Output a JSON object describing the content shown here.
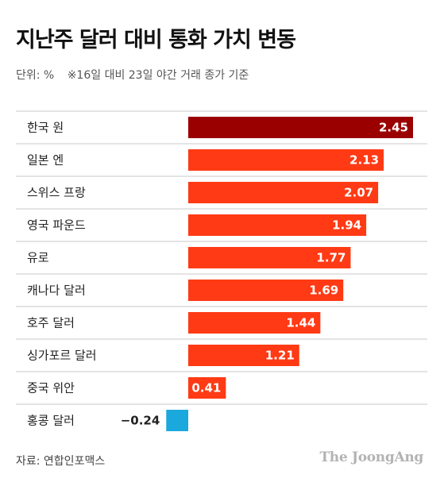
{
  "title": "지난주 달러 대비 통화 가치 변동",
  "unit": "단위: %",
  "note": "※16일 대비 23일 야간 거래 종가 기준",
  "source": "자료: 연합인포맥스",
  "logo": "The JoongAng",
  "colors": {
    "highlight": "#9b0000",
    "positive": "#ff3a14",
    "negative": "#1ba8dc",
    "separator": "#c9c9c9"
  },
  "chart_data": {
    "type": "bar",
    "orientation": "horizontal",
    "title": "지난주 달러 대비 통화 가치 변동",
    "unit": "%",
    "categories": [
      "한국 원",
      "일본 엔",
      "스위스 프랑",
      "영국 파운드",
      "유로",
      "캐나다 달러",
      "호주 달러",
      "싱가포르 달러",
      "중국 위안",
      "홍콩 달러"
    ],
    "values": [
      2.45,
      2.13,
      2.07,
      1.94,
      1.77,
      1.69,
      1.44,
      1.21,
      0.41,
      -0.24
    ],
    "value_labels": [
      "2.45",
      "2.13",
      "2.07",
      "1.94",
      "1.77",
      "1.69",
      "1.44",
      "1.21",
      "0.41",
      "−0.24"
    ],
    "highlight_index": 0,
    "xlim": [
      -0.24,
      2.45
    ],
    "grid": false
  }
}
